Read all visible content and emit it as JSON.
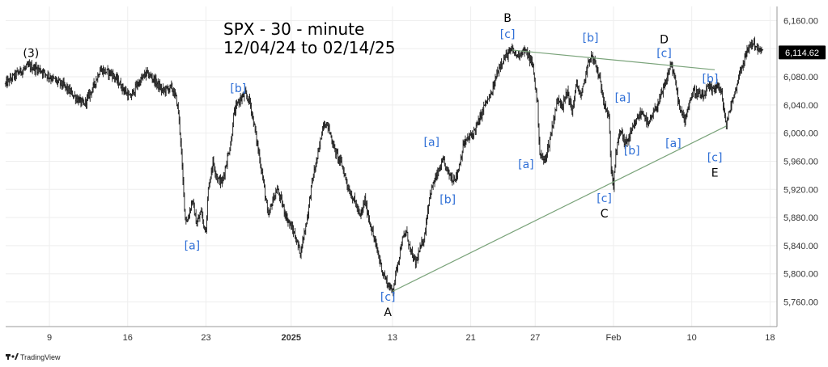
{
  "title": {
    "line1": "SPX - 30 - minute",
    "line2": "12/04/24 to 02/14/25"
  },
  "brand": {
    "logo_icon": "tradingview-logo-icon",
    "label": "TradingView"
  },
  "current_price": {
    "value": 6114.62,
    "label": "6,114.62",
    "color": "#000000"
  },
  "chart_data": {
    "type": "ohlc",
    "title": "SPX - 30 - minute",
    "subtitle": "12/04/24 to 02/14/25",
    "ylim": [
      5725,
      6180
    ],
    "y_ticks": [
      5760,
      5800,
      5840,
      5880,
      5920,
      5960,
      6000,
      6040,
      6080,
      6120,
      6160
    ],
    "y_tick_labels": [
      "5,760.00",
      "5,800.00",
      "5,840.00",
      "5,880.00",
      "5,920.00",
      "5,960.00",
      "6,000.00",
      "6,040.00",
      "6,080.00",
      "6,120.00",
      "6,160.00"
    ],
    "x_range": [
      0,
      330
    ],
    "x_ticks": [
      {
        "x": 19,
        "label": "9",
        "bold": false
      },
      {
        "x": 53,
        "label": "16",
        "bold": false
      },
      {
        "x": 87,
        "label": "23",
        "bold": false
      },
      {
        "x": 124,
        "label": "2025",
        "bold": true
      },
      {
        "x": 168,
        "label": "13",
        "bold": false
      },
      {
        "x": 202,
        "label": "21",
        "bold": false
      },
      {
        "x": 230,
        "label": "27",
        "bold": false
      },
      {
        "x": 264,
        "label": "Feb",
        "bold": false
      },
      {
        "x": 298,
        "label": "10",
        "bold": false
      },
      {
        "x": 332,
        "label": "18",
        "bold": false
      }
    ],
    "grid": true,
    "price_path": [
      [
        0,
        6070
      ],
      [
        5,
        6085
      ],
      [
        10,
        6095
      ],
      [
        15,
        6090
      ],
      [
        20,
        6078
      ],
      [
        25,
        6068
      ],
      [
        30,
        6052
      ],
      [
        34,
        6040
      ],
      [
        38,
        6065
      ],
      [
        41,
        6090
      ],
      [
        46,
        6085
      ],
      [
        50,
        6068
      ],
      [
        54,
        6050
      ],
      [
        57,
        6068
      ],
      [
        61,
        6085
      ],
      [
        64,
        6078
      ],
      [
        68,
        6060
      ],
      [
        72,
        6065
      ],
      [
        74,
        6050
      ],
      [
        75,
        6030
      ],
      [
        76,
        5990
      ],
      [
        77,
        5930
      ],
      [
        78,
        5880
      ],
      [
        79,
        5875
      ],
      [
        81,
        5905
      ],
      [
        83,
        5870
      ],
      [
        85,
        5890
      ],
      [
        86,
        5868
      ],
      [
        87,
        5865
      ],
      [
        88,
        5920
      ],
      [
        90,
        5960
      ],
      [
        92,
        5935
      ],
      [
        94,
        5930
      ],
      [
        96,
        5960
      ],
      [
        98,
        5990
      ],
      [
        99,
        6025
      ],
      [
        101,
        6045
      ],
      [
        104,
        6055
      ],
      [
        106,
        6045
      ],
      [
        108,
        6010
      ],
      [
        110,
        5970
      ],
      [
        112,
        5930
      ],
      [
        114,
        5880
      ],
      [
        116,
        5905
      ],
      [
        118,
        5920
      ],
      [
        120,
        5900
      ],
      [
        122,
        5880
      ],
      [
        125,
        5860
      ],
      [
        128,
        5830
      ],
      [
        131,
        5880
      ],
      [
        133,
        5930
      ],
      [
        136,
        5975
      ],
      [
        138,
        6015
      ],
      [
        140,
        6010
      ],
      [
        143,
        5975
      ],
      [
        146,
        5955
      ],
      [
        149,
        5920
      ],
      [
        152,
        5900
      ],
      [
        154,
        5880
      ],
      [
        156,
        5905
      ],
      [
        158,
        5875
      ],
      [
        160,
        5850
      ],
      [
        162,
        5825
      ],
      [
        164,
        5800
      ],
      [
        166,
        5785
      ],
      [
        168,
        5775
      ],
      [
        170,
        5810
      ],
      [
        172,
        5845
      ],
      [
        174,
        5860
      ],
      [
        176,
        5830
      ],
      [
        178,
        5815
      ],
      [
        180,
        5835
      ],
      [
        182,
        5855
      ],
      [
        184,
        5910
      ],
      [
        186,
        5930
      ],
      [
        188,
        5945
      ],
      [
        190,
        5960
      ],
      [
        192,
        5945
      ],
      [
        194,
        5935
      ],
      [
        196,
        5940
      ],
      [
        199,
        5985
      ],
      [
        203,
        6000
      ],
      [
        206,
        6020
      ],
      [
        208,
        6040
      ],
      [
        211,
        6055
      ],
      [
        213,
        6080
      ],
      [
        215,
        6100
      ],
      [
        218,
        6112
      ],
      [
        220,
        6118
      ],
      [
        222,
        6110
      ],
      [
        225,
        6118
      ],
      [
        227,
        6110
      ],
      [
        229,
        6095
      ],
      [
        231,
        6040
      ],
      [
        232,
        5970
      ],
      [
        234,
        5960
      ],
      [
        236,
        5985
      ],
      [
        238,
        6020
      ],
      [
        240,
        6050
      ],
      [
        242,
        6040
      ],
      [
        244,
        6060
      ],
      [
        246,
        6030
      ],
      [
        248,
        6070
      ],
      [
        250,
        6050
      ],
      [
        252,
        6085
      ],
      [
        254,
        6110
      ],
      [
        256,
        6100
      ],
      [
        258,
        6075
      ],
      [
        260,
        6045
      ],
      [
        262,
        6020
      ],
      [
        263,
        5950
      ],
      [
        264,
        5925
      ],
      [
        265,
        5970
      ],
      [
        267,
        6005
      ],
      [
        269,
        5985
      ],
      [
        271,
        5995
      ],
      [
        273,
        6010
      ],
      [
        275,
        6025
      ],
      [
        277,
        6030
      ],
      [
        279,
        6010
      ],
      [
        281,
        6025
      ],
      [
        283,
        6040
      ],
      [
        285,
        6055
      ],
      [
        287,
        6075
      ],
      [
        289,
        6100
      ],
      [
        291,
        6070
      ],
      [
        293,
        6030
      ],
      [
        295,
        6020
      ],
      [
        297,
        6045
      ],
      [
        299,
        6060
      ],
      [
        301,
        6055
      ],
      [
        303,
        6050
      ],
      [
        305,
        6065
      ],
      [
        307,
        6060
      ],
      [
        309,
        6070
      ],
      [
        311,
        6055
      ],
      [
        313,
        6010
      ],
      [
        315,
        6040
      ],
      [
        317,
        6060
      ],
      [
        319,
        6090
      ],
      [
        321,
        6105
      ],
      [
        323,
        6125
      ],
      [
        325,
        6128
      ],
      [
        327,
        6118
      ],
      [
        329,
        6115
      ]
    ],
    "trendlines": [
      {
        "name": "lower-boundary-line",
        "color": "#7aa37a",
        "from": [
          168,
          5775
        ],
        "to": [
          313,
          6010
        ]
      },
      {
        "name": "upper-boundary-line",
        "color": "#7aa37a",
        "from": [
          220,
          6118
        ],
        "to": [
          308,
          6090
        ]
      }
    ],
    "annotations": [
      {
        "text": "(3)",
        "x": 11,
        "y": 6108,
        "style": "black"
      },
      {
        "text": "[b]",
        "x": 101,
        "y": 6058,
        "style": "blue"
      },
      {
        "text": "[a]",
        "x": 81,
        "y": 5835,
        "style": "blue"
      },
      {
        "text": "[c]",
        "x": 166,
        "y": 5762,
        "style": "blue"
      },
      {
        "text": "A",
        "x": 166,
        "y": 5740,
        "style": "black"
      },
      {
        "text": "[a]",
        "x": 185,
        "y": 5982,
        "style": "blue"
      },
      {
        "text": "[b]",
        "x": 192,
        "y": 5900,
        "style": "blue"
      },
      {
        "text": "B",
        "x": 218,
        "y": 6158,
        "style": "black"
      },
      {
        "text": "[c]",
        "x": 218,
        "y": 6135,
        "style": "blue"
      },
      {
        "text": "[a]",
        "x": 226,
        "y": 5950,
        "style": "blue"
      },
      {
        "text": "[b]",
        "x": 254,
        "y": 6130,
        "style": "blue"
      },
      {
        "text": "[c]",
        "x": 260,
        "y": 5902,
        "style": "blue"
      },
      {
        "text": "C",
        "x": 260,
        "y": 5880,
        "style": "black"
      },
      {
        "text": "[a]",
        "x": 268,
        "y": 6045,
        "style": "blue"
      },
      {
        "text": "[b]",
        "x": 272,
        "y": 5970,
        "style": "blue"
      },
      {
        "text": "D",
        "x": 286,
        "y": 6128,
        "style": "black"
      },
      {
        "text": "[c]",
        "x": 286,
        "y": 6108,
        "style": "blue"
      },
      {
        "text": "[a]",
        "x": 290,
        "y": 5980,
        "style": "blue"
      },
      {
        "text": "[b]",
        "x": 306,
        "y": 6072,
        "style": "blue"
      },
      {
        "text": "[c]",
        "x": 308,
        "y": 5960,
        "style": "blue"
      },
      {
        "text": "E",
        "x": 308,
        "y": 5938,
        "style": "black"
      }
    ]
  },
  "colors": {
    "bars": "#1a1a1a",
    "grid": "#eeeeee",
    "axis_border": "#999999",
    "wave_label_blue": "#2f6fd6",
    "trendline": "#7aa37a"
  }
}
